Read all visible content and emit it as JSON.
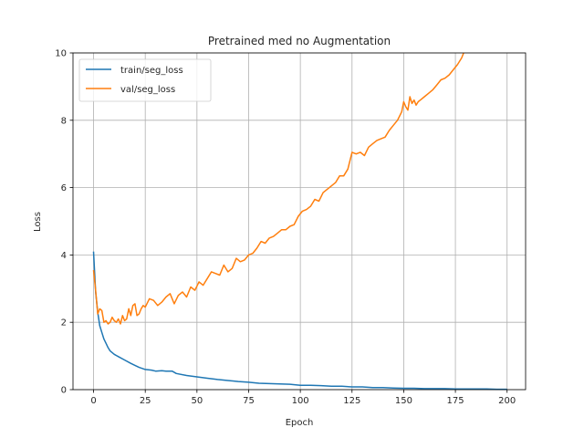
{
  "chart_data": {
    "type": "line",
    "title": "Pretrained med no Augmentation",
    "xlabel": "Epoch",
    "ylabel": "Loss",
    "xlim": [
      -9.95,
      208.95
    ],
    "ylim": [
      0,
      10
    ],
    "xticks": [
      0,
      25,
      50,
      75,
      100,
      125,
      150,
      175,
      200
    ],
    "yticks": [
      0,
      2,
      4,
      6,
      8,
      10
    ],
    "grid": true,
    "legend": "upper left",
    "series": [
      {
        "name": "train/seg_loss",
        "color": "#1f77b4",
        "x": [
          0,
          1,
          2,
          3,
          4,
          5,
          6,
          7,
          8,
          10,
          12,
          15,
          18,
          20,
          22,
          25,
          28,
          30,
          33,
          35,
          38,
          40,
          45,
          50,
          55,
          60,
          65,
          70,
          75,
          80,
          85,
          90,
          95,
          100,
          105,
          110,
          115,
          120,
          125,
          130,
          135,
          140,
          145,
          150,
          155,
          160,
          165,
          170,
          175,
          180,
          185,
          190,
          195,
          200
        ],
        "values": [
          4.1,
          2.9,
          2.3,
          1.9,
          1.7,
          1.5,
          1.38,
          1.25,
          1.15,
          1.05,
          0.98,
          0.88,
          0.78,
          0.72,
          0.66,
          0.6,
          0.58,
          0.55,
          0.56,
          0.55,
          0.55,
          0.48,
          0.42,
          0.38,
          0.34,
          0.3,
          0.27,
          0.24,
          0.22,
          0.19,
          0.18,
          0.17,
          0.16,
          0.13,
          0.13,
          0.12,
          0.1,
          0.1,
          0.08,
          0.08,
          0.06,
          0.06,
          0.05,
          0.04,
          0.04,
          0.03,
          0.03,
          0.03,
          0.02,
          0.02,
          0.02,
          0.02,
          0.01,
          0.01
        ]
      },
      {
        "name": "val/seg_loss",
        "color": "#ff7f0e",
        "x": [
          0,
          1,
          2,
          3,
          4,
          5,
          6,
          7,
          8,
          9,
          10,
          11,
          12,
          13,
          14,
          15,
          16,
          17,
          18,
          19,
          20,
          21,
          22,
          23,
          24,
          25,
          27,
          29,
          31,
          33,
          35,
          37,
          39,
          41,
          43,
          45,
          47,
          49,
          51,
          53,
          55,
          57,
          59,
          61,
          63,
          65,
          67,
          69,
          71,
          73,
          75,
          77,
          79,
          81,
          83,
          85,
          87,
          89,
          91,
          93,
          95,
          97,
          99,
          101,
          103,
          105,
          107,
          109,
          111,
          113,
          115,
          117,
          119,
          121,
          123,
          125,
          127,
          129,
          131,
          133,
          135,
          137,
          139,
          141,
          143,
          145,
          147,
          149,
          150,
          151,
          152,
          153,
          154,
          155,
          156,
          157,
          158,
          160,
          162,
          164,
          166,
          168,
          170,
          172,
          174,
          176,
          178,
          179
        ],
        "values": [
          3.55,
          2.95,
          2.25,
          2.4,
          2.35,
          2.0,
          2.05,
          1.95,
          2.0,
          2.15,
          2.05,
          2.0,
          2.1,
          1.95,
          2.2,
          2.05,
          2.1,
          2.4,
          2.2,
          2.5,
          2.55,
          2.2,
          2.25,
          2.4,
          2.5,
          2.45,
          2.7,
          2.65,
          2.5,
          2.6,
          2.75,
          2.85,
          2.55,
          2.8,
          2.9,
          2.75,
          3.05,
          2.95,
          3.2,
          3.1,
          3.3,
          3.5,
          3.45,
          3.4,
          3.7,
          3.5,
          3.6,
          3.9,
          3.8,
          3.85,
          4.0,
          4.05,
          4.2,
          4.4,
          4.35,
          4.5,
          4.55,
          4.65,
          4.75,
          4.75,
          4.85,
          4.9,
          5.15,
          5.3,
          5.35,
          5.45,
          5.65,
          5.6,
          5.85,
          5.95,
          6.05,
          6.15,
          6.35,
          6.35,
          6.55,
          7.05,
          7.0,
          7.05,
          6.95,
          7.2,
          7.3,
          7.4,
          7.45,
          7.5,
          7.7,
          7.85,
          8.0,
          8.25,
          8.55,
          8.4,
          8.3,
          8.7,
          8.5,
          8.6,
          8.45,
          8.55,
          8.6,
          8.7,
          8.8,
          8.9,
          9.05,
          9.2,
          9.25,
          9.35,
          9.5,
          9.65,
          9.85,
          10.0
        ]
      }
    ]
  }
}
